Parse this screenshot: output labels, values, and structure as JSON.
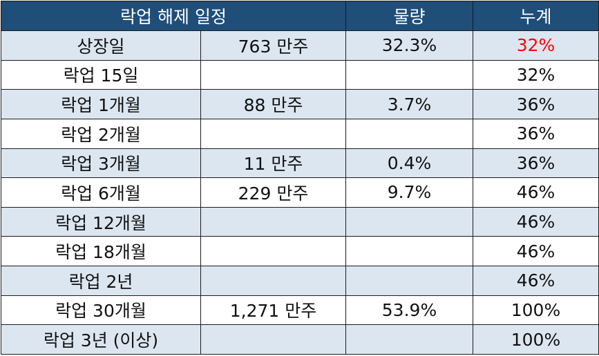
{
  "table": {
    "header": [
      "락업 해제 일정",
      "물량",
      "누계"
    ],
    "rows": [
      [
        "상장일",
        "763 만주",
        "32.3%",
        "32%"
      ],
      [
        "락업 15일",
        null,
        null,
        "32%"
      ],
      [
        "락업 1개월",
        "88 만주",
        "3.7%",
        "36%"
      ],
      [
        "락업 2개월",
        null,
        null,
        "36%"
      ],
      [
        "락업 3개월",
        "11 만주",
        "0.4%",
        "36%"
      ],
      [
        "락업 6개월",
        "229 만주",
        "9.7%",
        "46%"
      ],
      [
        "락업 12개월",
        null,
        null,
        "46%"
      ],
      [
        "락업 18개월",
        null,
        null,
        "46%"
      ],
      [
        "락업 2년",
        null,
        null,
        "46%"
      ],
      [
        "락업 30개월",
        "1,271 만주",
        "53.9%",
        "100%"
      ],
      [
        "락업 3년 (이상)",
        null,
        null,
        "100%"
      ]
    ]
  }
}
